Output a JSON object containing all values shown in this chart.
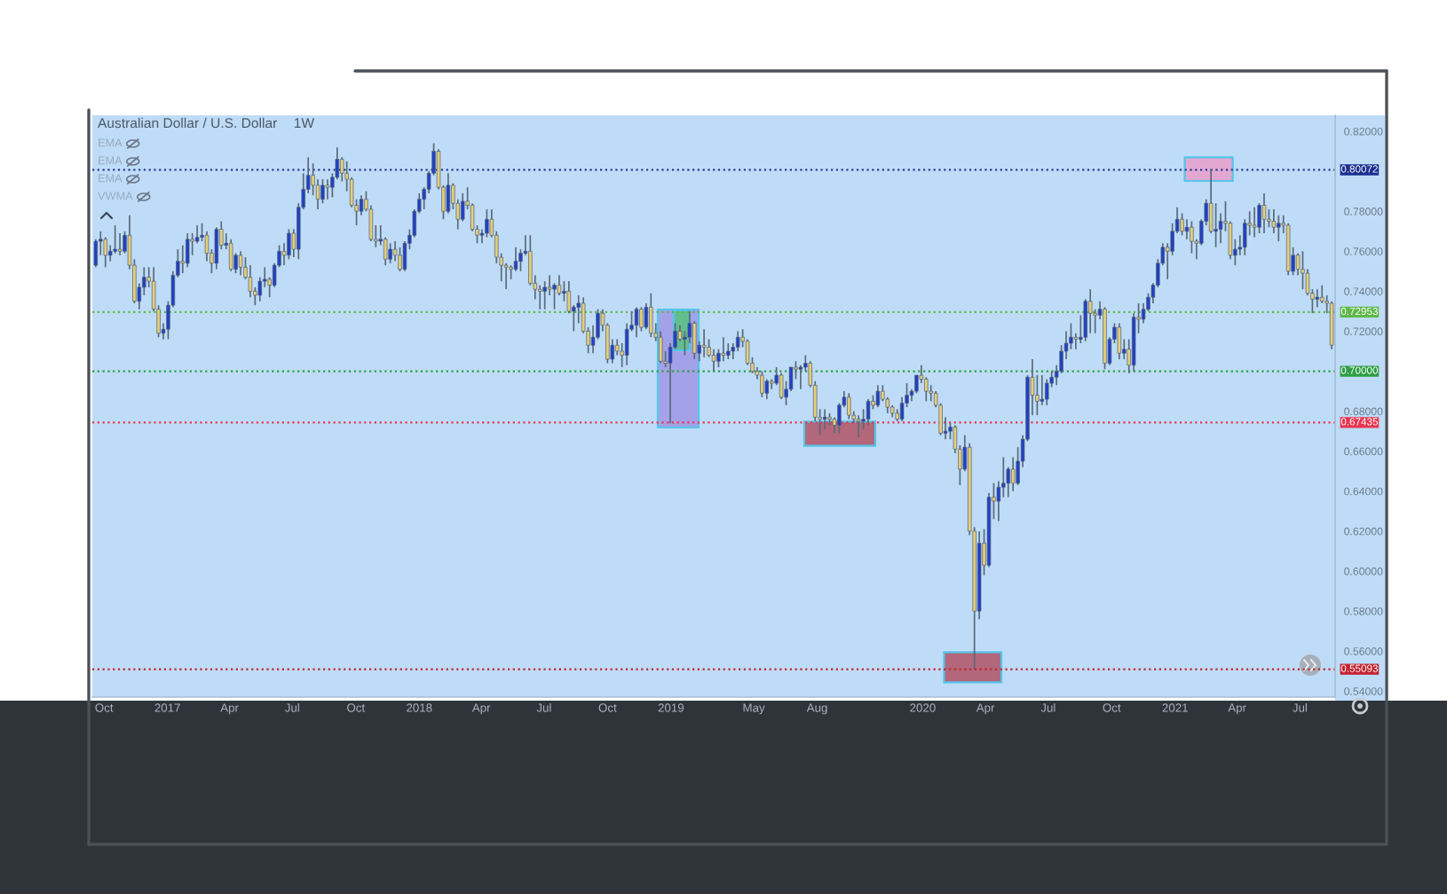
{
  "chart_data": {
    "type": "candlestick",
    "title": "Australian Dollar / U.S. Dollar",
    "subtitle": "1W",
    "annotations": [
      "EMA",
      "EMA",
      "EMA",
      "VWMA"
    ],
    "x": [
      "2016-09-19",
      "2016-09-26",
      "2016-10-03",
      "2016-10-10",
      "2016-10-17",
      "2016-10-24",
      "2016-10-31",
      "2016-11-07",
      "2016-11-14",
      "2016-11-21",
      "2016-11-28",
      "2016-12-05",
      "2016-12-12",
      "2016-12-19",
      "2016-12-26",
      "2017-01-02",
      "2017-01-09",
      "2017-01-16",
      "2017-01-23",
      "2017-01-30",
      "2017-02-06",
      "2017-02-13",
      "2017-02-20",
      "2017-02-27",
      "2017-03-06",
      "2017-03-13",
      "2017-03-20",
      "2017-03-27",
      "2017-04-03",
      "2017-04-10",
      "2017-04-17",
      "2017-04-24",
      "2017-05-01",
      "2017-05-08",
      "2017-05-15",
      "2017-05-22",
      "2017-05-29",
      "2017-06-05",
      "2017-06-12",
      "2017-06-19",
      "2017-06-26",
      "2017-07-03",
      "2017-07-10",
      "2017-07-17",
      "2017-07-24",
      "2017-07-31",
      "2017-08-07",
      "2017-08-14",
      "2017-08-21",
      "2017-08-28",
      "2017-09-04",
      "2017-09-11",
      "2017-09-18",
      "2017-09-25",
      "2017-10-02",
      "2017-10-09",
      "2017-10-16",
      "2017-10-23",
      "2017-10-30",
      "2017-11-06",
      "2017-11-13",
      "2017-11-20",
      "2017-11-27",
      "2017-12-04",
      "2017-12-11",
      "2017-12-18",
      "2017-12-25",
      "2018-01-01",
      "2018-01-08",
      "2018-01-15",
      "2018-01-22",
      "2018-01-29",
      "2018-02-05",
      "2018-02-12",
      "2018-02-19",
      "2018-02-26",
      "2018-03-05",
      "2018-03-12",
      "2018-03-19",
      "2018-03-26",
      "2018-04-02",
      "2018-04-09",
      "2018-04-16",
      "2018-04-23",
      "2018-04-30",
      "2018-05-07",
      "2018-05-14",
      "2018-05-21",
      "2018-05-28",
      "2018-06-04",
      "2018-06-11",
      "2018-06-18",
      "2018-06-25",
      "2018-07-02",
      "2018-07-09",
      "2018-07-16",
      "2018-07-23",
      "2018-07-30",
      "2018-08-06",
      "2018-08-13",
      "2018-08-20",
      "2018-08-27",
      "2018-09-03",
      "2018-09-10",
      "2018-09-17",
      "2018-09-24",
      "2018-10-01",
      "2018-10-08",
      "2018-10-15",
      "2018-10-22",
      "2018-10-29",
      "2018-11-05",
      "2018-11-12",
      "2018-11-19",
      "2018-11-26",
      "2018-12-03",
      "2018-12-10",
      "2018-12-17",
      "2018-12-24",
      "2018-12-31",
      "2019-01-07",
      "2019-01-14",
      "2019-01-21",
      "2019-01-28",
      "2019-02-04",
      "2019-02-11",
      "2019-02-18",
      "2019-02-25",
      "2019-03-04",
      "2019-03-11",
      "2019-03-18",
      "2019-03-25",
      "2019-04-01",
      "2019-04-08",
      "2019-04-15",
      "2019-04-22",
      "2019-04-29",
      "2019-05-06",
      "2019-05-13",
      "2019-05-20",
      "2019-05-27",
      "2019-06-03",
      "2019-06-10",
      "2019-06-17",
      "2019-06-24",
      "2019-07-01",
      "2019-07-08",
      "2019-07-15",
      "2019-07-22",
      "2019-07-29",
      "2019-08-05",
      "2019-08-12",
      "2019-08-19",
      "2019-08-26",
      "2019-09-02",
      "2019-09-09",
      "2019-09-16",
      "2019-09-23",
      "2019-09-30",
      "2019-10-07",
      "2019-10-14",
      "2019-10-21",
      "2019-10-28",
      "2019-11-04",
      "2019-11-11",
      "2019-11-18",
      "2019-11-25",
      "2019-12-02",
      "2019-12-09",
      "2019-12-16",
      "2019-12-23",
      "2019-12-30",
      "2020-01-06",
      "2020-01-13",
      "2020-01-20",
      "2020-01-27",
      "2020-02-03",
      "2020-02-10",
      "2020-02-17",
      "2020-02-24",
      "2020-03-02",
      "2020-03-09",
      "2020-03-16",
      "2020-03-23",
      "2020-03-30",
      "2020-04-06",
      "2020-04-13",
      "2020-04-20",
      "2020-04-27",
      "2020-05-04",
      "2020-05-11",
      "2020-05-18",
      "2020-05-25",
      "2020-06-01",
      "2020-06-08",
      "2020-06-15",
      "2020-06-22",
      "2020-06-29",
      "2020-07-06",
      "2020-07-13",
      "2020-07-20",
      "2020-07-27",
      "2020-08-03",
      "2020-08-10",
      "2020-08-17",
      "2020-08-24",
      "2020-08-31",
      "2020-09-07",
      "2020-09-14",
      "2020-09-21",
      "2020-09-28",
      "2020-10-05",
      "2020-10-12",
      "2020-10-19",
      "2020-10-26",
      "2020-11-02",
      "2020-11-09",
      "2020-11-16",
      "2020-11-23",
      "2020-11-30",
      "2020-12-07",
      "2020-12-14",
      "2020-12-21",
      "2020-12-28",
      "2021-01-04",
      "2021-01-11",
      "2021-01-18",
      "2021-01-25",
      "2021-02-01",
      "2021-02-08",
      "2021-02-15",
      "2021-02-22",
      "2021-03-01",
      "2021-03-08",
      "2021-03-15",
      "2021-03-22",
      "2021-03-29",
      "2021-04-05",
      "2021-04-12",
      "2021-04-19",
      "2021-04-26",
      "2021-05-03",
      "2021-05-10",
      "2021-05-17",
      "2021-05-24",
      "2021-05-31",
      "2021-06-07",
      "2021-06-14",
      "2021-06-21",
      "2021-06-28",
      "2021-07-05",
      "2021-07-12",
      "2021-07-19",
      "2021-07-26",
      "2021-08-02",
      "2021-08-09",
      "2021-08-16"
    ],
    "ohlc": [
      [
        0.753,
        0.766,
        0.752,
        0.765
      ],
      [
        0.765,
        0.77,
        0.758,
        0.766
      ],
      [
        0.766,
        0.767,
        0.752,
        0.758
      ],
      [
        0.758,
        0.763,
        0.755,
        0.76
      ],
      [
        0.76,
        0.773,
        0.759,
        0.761
      ],
      [
        0.761,
        0.769,
        0.758,
        0.76
      ],
      [
        0.76,
        0.77,
        0.759,
        0.768
      ],
      [
        0.768,
        0.778,
        0.751,
        0.753
      ],
      [
        0.753,
        0.756,
        0.734,
        0.735
      ],
      [
        0.735,
        0.744,
        0.731,
        0.742
      ],
      [
        0.742,
        0.752,
        0.738,
        0.747
      ],
      [
        0.747,
        0.752,
        0.742,
        0.745
      ],
      [
        0.745,
        0.752,
        0.73,
        0.731
      ],
      [
        0.731,
        0.733,
        0.717,
        0.719
      ],
      [
        0.719,
        0.724,
        0.716,
        0.721
      ],
      [
        0.721,
        0.735,
        0.716,
        0.733
      ],
      [
        0.733,
        0.75,
        0.732,
        0.748
      ],
      [
        0.748,
        0.761,
        0.747,
        0.755
      ],
      [
        0.755,
        0.763,
        0.749,
        0.754
      ],
      [
        0.754,
        0.769,
        0.752,
        0.766
      ],
      [
        0.766,
        0.769,
        0.758,
        0.765
      ],
      [
        0.765,
        0.773,
        0.764,
        0.767
      ],
      [
        0.767,
        0.774,
        0.765,
        0.768
      ],
      [
        0.768,
        0.77,
        0.755,
        0.759
      ],
      [
        0.759,
        0.761,
        0.749,
        0.754
      ],
      [
        0.754,
        0.772,
        0.751,
        0.771
      ],
      [
        0.771,
        0.775,
        0.761,
        0.763
      ],
      [
        0.763,
        0.769,
        0.761,
        0.764
      ],
      [
        0.764,
        0.766,
        0.75,
        0.751
      ],
      [
        0.751,
        0.759,
        0.749,
        0.758
      ],
      [
        0.758,
        0.76,
        0.748,
        0.752
      ],
      [
        0.752,
        0.757,
        0.746,
        0.747
      ],
      [
        0.747,
        0.753,
        0.737,
        0.74
      ],
      [
        0.74,
        0.742,
        0.733,
        0.738
      ],
      [
        0.738,
        0.747,
        0.735,
        0.745
      ],
      [
        0.745,
        0.752,
        0.742,
        0.746
      ],
      [
        0.746,
        0.747,
        0.737,
        0.743
      ],
      [
        0.743,
        0.754,
        0.742,
        0.753
      ],
      [
        0.753,
        0.763,
        0.752,
        0.76
      ],
      [
        0.76,
        0.764,
        0.753,
        0.758
      ],
      [
        0.758,
        0.771,
        0.756,
        0.769
      ],
      [
        0.769,
        0.771,
        0.757,
        0.761
      ],
      [
        0.761,
        0.784,
        0.756,
        0.782
      ],
      [
        0.782,
        0.799,
        0.781,
        0.791
      ],
      [
        0.791,
        0.807,
        0.789,
        0.798
      ],
      [
        0.798,
        0.804,
        0.788,
        0.793
      ],
      [
        0.793,
        0.796,
        0.781,
        0.786
      ],
      [
        0.786,
        0.796,
        0.784,
        0.793
      ],
      [
        0.793,
        0.796,
        0.786,
        0.792
      ],
      [
        0.792,
        0.799,
        0.787,
        0.797
      ],
      [
        0.797,
        0.812,
        0.796,
        0.806
      ],
      [
        0.806,
        0.807,
        0.795,
        0.799
      ],
      [
        0.799,
        0.805,
        0.79,
        0.796
      ],
      [
        0.796,
        0.797,
        0.782,
        0.783
      ],
      [
        0.783,
        0.786,
        0.773,
        0.78
      ],
      [
        0.78,
        0.788,
        0.778,
        0.786
      ],
      [
        0.786,
        0.79,
        0.78,
        0.781
      ],
      [
        0.781,
        0.783,
        0.765,
        0.766
      ],
      [
        0.766,
        0.773,
        0.762,
        0.765
      ],
      [
        0.765,
        0.773,
        0.763,
        0.766
      ],
      [
        0.766,
        0.767,
        0.753,
        0.756
      ],
      [
        0.756,
        0.764,
        0.754,
        0.761
      ],
      [
        0.761,
        0.765,
        0.755,
        0.758
      ],
      [
        0.758,
        0.762,
        0.75,
        0.751
      ],
      [
        0.751,
        0.765,
        0.75,
        0.764
      ],
      [
        0.764,
        0.771,
        0.761,
        0.768
      ],
      [
        0.768,
        0.781,
        0.767,
        0.78
      ],
      [
        0.78,
        0.789,
        0.779,
        0.786
      ],
      [
        0.786,
        0.792,
        0.781,
        0.791
      ],
      [
        0.791,
        0.8,
        0.789,
        0.799
      ],
      [
        0.799,
        0.814,
        0.798,
        0.81
      ],
      [
        0.81,
        0.811,
        0.791,
        0.792
      ],
      [
        0.792,
        0.793,
        0.776,
        0.78
      ],
      [
        0.78,
        0.799,
        0.779,
        0.793
      ],
      [
        0.793,
        0.794,
        0.781,
        0.784
      ],
      [
        0.784,
        0.786,
        0.771,
        0.776
      ],
      [
        0.776,
        0.789,
        0.775,
        0.785
      ],
      [
        0.785,
        0.792,
        0.781,
        0.783
      ],
      [
        0.783,
        0.784,
        0.77,
        0.771
      ],
      [
        0.771,
        0.773,
        0.764,
        0.768
      ],
      [
        0.768,
        0.771,
        0.764,
        0.769
      ],
      [
        0.769,
        0.781,
        0.767,
        0.776
      ],
      [
        0.776,
        0.781,
        0.767,
        0.768
      ],
      [
        0.768,
        0.77,
        0.754,
        0.757
      ],
      [
        0.757,
        0.759,
        0.745,
        0.753
      ],
      [
        0.753,
        0.754,
        0.741,
        0.752
      ],
      [
        0.752,
        0.753,
        0.746,
        0.751
      ],
      [
        0.751,
        0.762,
        0.75,
        0.755
      ],
      [
        0.755,
        0.761,
        0.75,
        0.759
      ],
      [
        0.759,
        0.768,
        0.758,
        0.76
      ],
      [
        0.76,
        0.768,
        0.743,
        0.744
      ],
      [
        0.744,
        0.748,
        0.736,
        0.741
      ],
      [
        0.741,
        0.743,
        0.731,
        0.74
      ],
      [
        0.74,
        0.745,
        0.731,
        0.742
      ],
      [
        0.742,
        0.748,
        0.738,
        0.741
      ],
      [
        0.741,
        0.744,
        0.731,
        0.743
      ],
      [
        0.743,
        0.748,
        0.738,
        0.739
      ],
      [
        0.739,
        0.745,
        0.735,
        0.74
      ],
      [
        0.74,
        0.745,
        0.729,
        0.73
      ],
      [
        0.73,
        0.733,
        0.72,
        0.732
      ],
      [
        0.732,
        0.738,
        0.724,
        0.734
      ],
      [
        0.734,
        0.737,
        0.719,
        0.72
      ],
      [
        0.72,
        0.722,
        0.709,
        0.713
      ],
      [
        0.713,
        0.723,
        0.709,
        0.717
      ],
      [
        0.717,
        0.731,
        0.716,
        0.729
      ],
      [
        0.729,
        0.731,
        0.72,
        0.723
      ],
      [
        0.723,
        0.724,
        0.704,
        0.706
      ],
      [
        0.706,
        0.716,
        0.704,
        0.713
      ],
      [
        0.713,
        0.716,
        0.708,
        0.71
      ],
      [
        0.71,
        0.714,
        0.702,
        0.708
      ],
      [
        0.708,
        0.724,
        0.703,
        0.721
      ],
      [
        0.721,
        0.73,
        0.72,
        0.723
      ],
      [
        0.723,
        0.732,
        0.717,
        0.731
      ],
      [
        0.731,
        0.732,
        0.72,
        0.722
      ],
      [
        0.722,
        0.734,
        0.721,
        0.732
      ],
      [
        0.732,
        0.739,
        0.717,
        0.719
      ],
      [
        0.719,
        0.724,
        0.715,
        0.717
      ],
      [
        0.717,
        0.72,
        0.704,
        0.705
      ],
      [
        0.705,
        0.71,
        0.702,
        0.704
      ],
      [
        0.704,
        0.714,
        0.674,
        0.712
      ],
      [
        0.712,
        0.724,
        0.711,
        0.72
      ],
      [
        0.72,
        0.723,
        0.715,
        0.716
      ],
      [
        0.716,
        0.72,
        0.708,
        0.717
      ],
      [
        0.717,
        0.73,
        0.714,
        0.724
      ],
      [
        0.724,
        0.725,
        0.706,
        0.709
      ],
      [
        0.709,
        0.715,
        0.705,
        0.713
      ],
      [
        0.713,
        0.721,
        0.707,
        0.712
      ],
      [
        0.712,
        0.716,
        0.707,
        0.708
      ],
      [
        0.708,
        0.711,
        0.7,
        0.705
      ],
      [
        0.705,
        0.711,
        0.702,
        0.709
      ],
      [
        0.709,
        0.717,
        0.705,
        0.708
      ],
      [
        0.708,
        0.714,
        0.706,
        0.71
      ],
      [
        0.71,
        0.714,
        0.706,
        0.712
      ],
      [
        0.712,
        0.72,
        0.71,
        0.717
      ],
      [
        0.717,
        0.721,
        0.712,
        0.715
      ],
      [
        0.715,
        0.716,
        0.703,
        0.704
      ],
      [
        0.704,
        0.707,
        0.699,
        0.7
      ],
      [
        0.7,
        0.702,
        0.696,
        0.698
      ],
      [
        0.698,
        0.7,
        0.687,
        0.689
      ],
      [
        0.689,
        0.696,
        0.686,
        0.695
      ],
      [
        0.695,
        0.696,
        0.691,
        0.694
      ],
      [
        0.694,
        0.702,
        0.693,
        0.698
      ],
      [
        0.698,
        0.699,
        0.686,
        0.687
      ],
      [
        0.687,
        0.695,
        0.683,
        0.691
      ],
      [
        0.691,
        0.702,
        0.69,
        0.702
      ],
      [
        0.702,
        0.705,
        0.696,
        0.701
      ],
      [
        0.701,
        0.703,
        0.691,
        0.702
      ],
      [
        0.702,
        0.708,
        0.7,
        0.704
      ],
      [
        0.704,
        0.705,
        0.692,
        0.693
      ],
      [
        0.693,
        0.695,
        0.675,
        0.677
      ],
      [
        0.677,
        0.681,
        0.668,
        0.676
      ],
      [
        0.676,
        0.681,
        0.671,
        0.677
      ],
      [
        0.677,
        0.679,
        0.673,
        0.676
      ],
      [
        0.676,
        0.677,
        0.669,
        0.673
      ],
      [
        0.673,
        0.684,
        0.669,
        0.683
      ],
      [
        0.683,
        0.69,
        0.682,
        0.687
      ],
      [
        0.687,
        0.689,
        0.676,
        0.678
      ],
      [
        0.678,
        0.68,
        0.674,
        0.676
      ],
      [
        0.676,
        0.678,
        0.667,
        0.675
      ],
      [
        0.675,
        0.681,
        0.671,
        0.676
      ],
      [
        0.676,
        0.686,
        0.673,
        0.685
      ],
      [
        0.685,
        0.688,
        0.681,
        0.683
      ],
      [
        0.683,
        0.693,
        0.682,
        0.69
      ],
      [
        0.69,
        0.693,
        0.685,
        0.686
      ],
      [
        0.686,
        0.687,
        0.679,
        0.682
      ],
      [
        0.682,
        0.683,
        0.677,
        0.679
      ],
      [
        0.679,
        0.681,
        0.675,
        0.676
      ],
      [
        0.676,
        0.687,
        0.675,
        0.684
      ],
      [
        0.684,
        0.694,
        0.682,
        0.688
      ],
      [
        0.688,
        0.691,
        0.685,
        0.69
      ],
      [
        0.69,
        0.698,
        0.689,
        0.698
      ],
      [
        0.698,
        0.703,
        0.694,
        0.696
      ],
      [
        0.696,
        0.697,
        0.685,
        0.69
      ],
      [
        0.69,
        0.693,
        0.685,
        0.689
      ],
      [
        0.689,
        0.69,
        0.682,
        0.683
      ],
      [
        0.683,
        0.684,
        0.668,
        0.669
      ],
      [
        0.669,
        0.677,
        0.666,
        0.67
      ],
      [
        0.67,
        0.674,
        0.666,
        0.672
      ],
      [
        0.672,
        0.673,
        0.659,
        0.661
      ],
      [
        0.661,
        0.663,
        0.643,
        0.651
      ],
      [
        0.651,
        0.668,
        0.65,
        0.662
      ],
      [
        0.662,
        0.664,
        0.618,
        0.62
      ],
      [
        0.62,
        0.622,
        0.551,
        0.58
      ],
      [
        0.58,
        0.62,
        0.576,
        0.614
      ],
      [
        0.614,
        0.621,
        0.598,
        0.603
      ],
      [
        0.603,
        0.639,
        0.602,
        0.637
      ],
      [
        0.637,
        0.644,
        0.626,
        0.635
      ],
      [
        0.635,
        0.645,
        0.625,
        0.642
      ],
      [
        0.642,
        0.657,
        0.637,
        0.644
      ],
      [
        0.644,
        0.652,
        0.637,
        0.651
      ],
      [
        0.651,
        0.657,
        0.64,
        0.644
      ],
      [
        0.644,
        0.662,
        0.643,
        0.655
      ],
      [
        0.655,
        0.668,
        0.652,
        0.666
      ],
      [
        0.666,
        0.698,
        0.665,
        0.697
      ],
      [
        0.697,
        0.706,
        0.678,
        0.688
      ],
      [
        0.688,
        0.698,
        0.678,
        0.685
      ],
      [
        0.685,
        0.698,
        0.683,
        0.686
      ],
      [
        0.686,
        0.696,
        0.683,
        0.694
      ],
      [
        0.694,
        0.7,
        0.692,
        0.697
      ],
      [
        0.697,
        0.703,
        0.693,
        0.7
      ],
      [
        0.7,
        0.713,
        0.699,
        0.71
      ],
      [
        0.71,
        0.72,
        0.706,
        0.714
      ],
      [
        0.714,
        0.724,
        0.711,
        0.717
      ],
      [
        0.717,
        0.719,
        0.711,
        0.716
      ],
      [
        0.716,
        0.728,
        0.714,
        0.717
      ],
      [
        0.717,
        0.736,
        0.715,
        0.735
      ],
      [
        0.735,
        0.741,
        0.719,
        0.729
      ],
      [
        0.729,
        0.731,
        0.719,
        0.728
      ],
      [
        0.728,
        0.735,
        0.726,
        0.731
      ],
      [
        0.731,
        0.732,
        0.701,
        0.704
      ],
      [
        0.704,
        0.717,
        0.703,
        0.716
      ],
      [
        0.716,
        0.724,
        0.714,
        0.722
      ],
      [
        0.722,
        0.724,
        0.706,
        0.709
      ],
      [
        0.709,
        0.716,
        0.706,
        0.711
      ],
      [
        0.711,
        0.716,
        0.699,
        0.703
      ],
      [
        0.703,
        0.729,
        0.7,
        0.727
      ],
      [
        0.727,
        0.734,
        0.719,
        0.726
      ],
      [
        0.726,
        0.734,
        0.724,
        0.731
      ],
      [
        0.731,
        0.739,
        0.73,
        0.737
      ],
      [
        0.737,
        0.744,
        0.734,
        0.743
      ],
      [
        0.743,
        0.756,
        0.742,
        0.754
      ],
      [
        0.754,
        0.764,
        0.753,
        0.762
      ],
      [
        0.762,
        0.764,
        0.746,
        0.76
      ],
      [
        0.76,
        0.774,
        0.758,
        0.77
      ],
      [
        0.77,
        0.782,
        0.769,
        0.776
      ],
      [
        0.776,
        0.779,
        0.768,
        0.77
      ],
      [
        0.77,
        0.776,
        0.766,
        0.772
      ],
      [
        0.772,
        0.775,
        0.759,
        0.765
      ],
      [
        0.765,
        0.766,
        0.756,
        0.764
      ],
      [
        0.764,
        0.776,
        0.763,
        0.775
      ],
      [
        0.775,
        0.786,
        0.773,
        0.784
      ],
      [
        0.784,
        0.801,
        0.769,
        0.77
      ],
      [
        0.77,
        0.784,
        0.762,
        0.771
      ],
      [
        0.771,
        0.779,
        0.764,
        0.775
      ],
      [
        0.775,
        0.785,
        0.77,
        0.774
      ],
      [
        0.774,
        0.775,
        0.756,
        0.758
      ],
      [
        0.758,
        0.766,
        0.753,
        0.761
      ],
      [
        0.761,
        0.768,
        0.758,
        0.762
      ],
      [
        0.762,
        0.776,
        0.758,
        0.774
      ],
      [
        0.774,
        0.78,
        0.768,
        0.773
      ],
      [
        0.773,
        0.782,
        0.767,
        0.772
      ],
      [
        0.772,
        0.784,
        0.769,
        0.783
      ],
      [
        0.783,
        0.789,
        0.769,
        0.776
      ],
      [
        0.776,
        0.781,
        0.772,
        0.775
      ],
      [
        0.775,
        0.781,
        0.769,
        0.772
      ],
      [
        0.772,
        0.778,
        0.765,
        0.774
      ],
      [
        0.774,
        0.778,
        0.769,
        0.773
      ],
      [
        0.773,
        0.774,
        0.748,
        0.75
      ],
      [
        0.75,
        0.762,
        0.748,
        0.758
      ],
      [
        0.758,
        0.759,
        0.748,
        0.751
      ],
      [
        0.751,
        0.76,
        0.741,
        0.749
      ],
      [
        0.749,
        0.751,
        0.738,
        0.739
      ],
      [
        0.739,
        0.741,
        0.729,
        0.736
      ],
      [
        0.736,
        0.741,
        0.732,
        0.737
      ],
      [
        0.737,
        0.743,
        0.734,
        0.735
      ],
      [
        0.735,
        0.738,
        0.729,
        0.734
      ],
      [
        0.734,
        0.735,
        0.711,
        0.713
      ]
    ],
    "colors": [
      "#2140c4",
      "#2140c4",
      "#e5ce7b",
      "#2140c4",
      "#2140c4",
      "#e5ce7b",
      "#2140c4",
      "#e5ce7b",
      "#e5ce7b",
      "#2140c4",
      "#2140c4",
      "#e5ce7b",
      "#e5ce7b",
      "#e5ce7b",
      "#2140c4",
      "#2140c4",
      "#2140c4",
      "#2140c4",
      "#e5ce7b",
      "#2140c4",
      "#e5ce7b",
      "#2140c4",
      "#2140c4",
      "#e5ce7b",
      "#e5ce7b",
      "#2140c4",
      "#e5ce7b",
      "#2140c4",
      "#e5ce7b",
      "#2140c4",
      "#e5ce7b",
      "#e5ce7b",
      "#e5ce7b",
      "#e5ce7b",
      "#2140c4",
      "#2140c4",
      "#e5ce7b",
      "#2140c4",
      "#2140c4",
      "#e5ce7b",
      "#2140c4",
      "#e5ce7b",
      "#2140c4",
      "#2140c4",
      "#2140c4",
      "#e5ce7b",
      "#e5ce7b",
      "#2140c4",
      "#e5ce7b",
      "#2140c4",
      "#2140c4",
      "#e5ce7b",
      "#e5ce7b",
      "#e5ce7b",
      "#e5ce7b",
      "#2140c4",
      "#e5ce7b",
      "#e5ce7b",
      "#e5ce7b",
      "#2140c4",
      "#e5ce7b",
      "#2140c4",
      "#e5ce7b",
      "#e5ce7b",
      "#2140c4",
      "#2140c4",
      "#2140c4",
      "#2140c4",
      "#2140c4",
      "#2140c4",
      "#2140c4",
      "#e5ce7b",
      "#e5ce7b",
      "#2140c4",
      "#e5ce7b",
      "#e5ce7b",
      "#2140c4",
      "#e5ce7b",
      "#e5ce7b",
      "#e5ce7b",
      "#2140c4",
      "#2140c4",
      "#e5ce7b",
      "#e5ce7b",
      "#e5ce7b",
      "#e5ce7b",
      "#e5ce7b",
      "#2140c4",
      "#2140c4",
      "#2140c4",
      "#e5ce7b",
      "#e5ce7b",
      "#e5ce7b",
      "#2140c4",
      "#e5ce7b",
      "#2140c4",
      "#e5ce7b",
      "#2140c4",
      "#e5ce7b",
      "#2140c4",
      "#2140c4",
      "#e5ce7b",
      "#e5ce7b",
      "#2140c4",
      "#2140c4",
      "#e5ce7b",
      "#e5ce7b",
      "#2140c4",
      "#e5ce7b",
      "#e5ce7b",
      "#2140c4",
      "#2140c4",
      "#2140c4",
      "#e5ce7b",
      "#2140c4",
      "#e5ce7b",
      "#e5ce7b",
      "#e5ce7b",
      "#e5ce7b",
      "#2140c4",
      "#2140c4",
      "#e5ce7b",
      "#2140c4",
      "#2140c4",
      "#e5ce7b",
      "#2140c4",
      "#e5ce7b",
      "#e5ce7b",
      "#e5ce7b",
      "#2140c4",
      "#e5ce7b",
      "#2140c4",
      "#2140c4",
      "#2140c4",
      "#e5ce7b",
      "#e5ce7b",
      "#e5ce7b",
      "#e5ce7b",
      "#e5ce7b",
      "#2140c4",
      "#e5ce7b",
      "#2140c4",
      "#e5ce7b",
      "#2140c4",
      "#2140c4",
      "#e5ce7b",
      "#2140c4",
      "#2140c4",
      "#e5ce7b",
      "#e5ce7b",
      "#e5ce7b",
      "#2140c4",
      "#e5ce7b",
      "#e5ce7b",
      "#2140c4",
      "#2140c4",
      "#e5ce7b",
      "#e5ce7b",
      "#e5ce7b",
      "#2140c4",
      "#2140c4",
      "#e5ce7b",
      "#2140c4",
      "#e5ce7b",
      "#e5ce7b",
      "#e5ce7b",
      "#e5ce7b",
      "#2140c4",
      "#2140c4",
      "#2140c4",
      "#2140c4",
      "#e5ce7b",
      "#e5ce7b",
      "#e5ce7b",
      "#e5ce7b",
      "#e5ce7b",
      "#2140c4",
      "#2140c4",
      "#e5ce7b",
      "#e5ce7b",
      "#2140c4",
      "#e5ce7b",
      "#e5ce7b",
      "#2140c4",
      "#e5ce7b",
      "#2140c4",
      "#e5ce7b",
      "#2140c4",
      "#2140c4",
      "#2140c4",
      "#e5ce7b",
      "#2140c4",
      "#2140c4",
      "#2140c4",
      "#e5ce7b",
      "#e5ce7b",
      "#2140c4",
      "#2140c4",
      "#2140c4",
      "#2140c4",
      "#2140c4",
      "#2140c4",
      "#2140c4",
      "#e5ce7b",
      "#2140c4",
      "#2140c4",
      "#e5ce7b",
      "#e5ce7b",
      "#2140c4",
      "#e5ce7b",
      "#2140c4",
      "#2140c4",
      "#e5ce7b",
      "#2140c4",
      "#e5ce7b",
      "#2140c4",
      "#e5ce7b",
      "#2140c4",
      "#2140c4",
      "#2140c4",
      "#2140c4",
      "#2140c4",
      "#e5ce7b",
      "#2140c4",
      "#2140c4",
      "#e5ce7b",
      "#2140c4",
      "#e5ce7b",
      "#e5ce7b",
      "#2140c4",
      "#2140c4",
      "#e5ce7b",
      "#2140c4",
      "#2140c4",
      "#e5ce7b",
      "#e5ce7b",
      "#2140c4",
      "#2140c4",
      "#2140c4",
      "#e5ce7b",
      "#e5ce7b",
      "#2140c4",
      "#e5ce7b",
      "#e5ce7b",
      "#e5ce7b",
      "#2140c4",
      "#e5ce7b",
      "#e5ce7b",
      "#2140c4",
      "#e5ce7b",
      "#e5ce7b",
      "#e5ce7b",
      "#e5ce7b",
      "#2140c4",
      "#e5ce7b",
      "#e5ce7b",
      "#e5ce7b"
    ],
    "xlim": [
      "2016-09-14",
      "2021-08-21"
    ],
    "ylim": [
      0.537,
      0.828
    ],
    "xticks": [
      {
        "value": "2016-10-01",
        "label": "Oct"
      },
      {
        "value": "2017-01-01",
        "label": "2017"
      },
      {
        "value": "2017-04-01",
        "label": "Apr"
      },
      {
        "value": "2017-07-01",
        "label": "Jul"
      },
      {
        "value": "2017-10-01",
        "label": "Oct"
      },
      {
        "value": "2018-01-01",
        "label": "2018"
      },
      {
        "value": "2018-04-01",
        "label": "Apr"
      },
      {
        "value": "2018-07-01",
        "label": "Jul"
      },
      {
        "value": "2018-10-01",
        "label": "Oct"
      },
      {
        "value": "2019-01-01",
        "label": "2019"
      },
      {
        "value": "2019-05-01",
        "label": "May"
      },
      {
        "value": "2019-08-01",
        "label": "Aug"
      },
      {
        "value": "2020-01-01",
        "label": "2020"
      },
      {
        "value": "2020-04-01",
        "label": "Apr"
      },
      {
        "value": "2020-07-01",
        "label": "Jul"
      },
      {
        "value": "2020-10-01",
        "label": "Oct"
      },
      {
        "value": "2021-01-01",
        "label": "2021"
      },
      {
        "value": "2021-04-01",
        "label": "Apr"
      },
      {
        "value": "2021-07-01",
        "label": "Jul"
      }
    ],
    "yticks": [
      {
        "value": 0.54,
        "label": "0.54000"
      },
      {
        "value": 0.56,
        "label": "0.56000"
      },
      {
        "value": 0.58,
        "label": "0.58000"
      },
      {
        "value": 0.6,
        "label": "0.60000"
      },
      {
        "value": 0.62,
        "label": "0.62000"
      },
      {
        "value": 0.64,
        "label": "0.64000"
      },
      {
        "value": 0.66,
        "label": "0.66000"
      },
      {
        "value": 0.68,
        "label": "0.68000"
      },
      {
        "value": 0.72,
        "label": "0.72000"
      },
      {
        "value": 0.74,
        "label": "0.74000"
      },
      {
        "value": 0.76,
        "label": "0.76000"
      },
      {
        "value": 0.78,
        "label": "0.78000"
      },
      {
        "value": 0.82,
        "label": "0.82000"
      }
    ],
    "ref_lines": [
      {
        "axis": "y",
        "value": 0.80072,
        "label": "0.80072",
        "color": "#1b2f8f",
        "line_style": "dotted"
      },
      {
        "axis": "y",
        "value": 0.72953,
        "label": "0.72953",
        "color": "#5fb84a",
        "line_style": "dotted"
      },
      {
        "axis": "y",
        "value": 0.7,
        "label": "0.70000",
        "color": "#2f9e44",
        "line_style": "dotted"
      },
      {
        "axis": "y",
        "value": 0.67435,
        "label": "0.67435",
        "color": "#e8354f",
        "line_style": "dotted"
      },
      {
        "axis": "y",
        "value": 0.55093,
        "label": "0.55093",
        "color": "#c42231",
        "line_style": "dotted"
      }
    ]
  }
}
